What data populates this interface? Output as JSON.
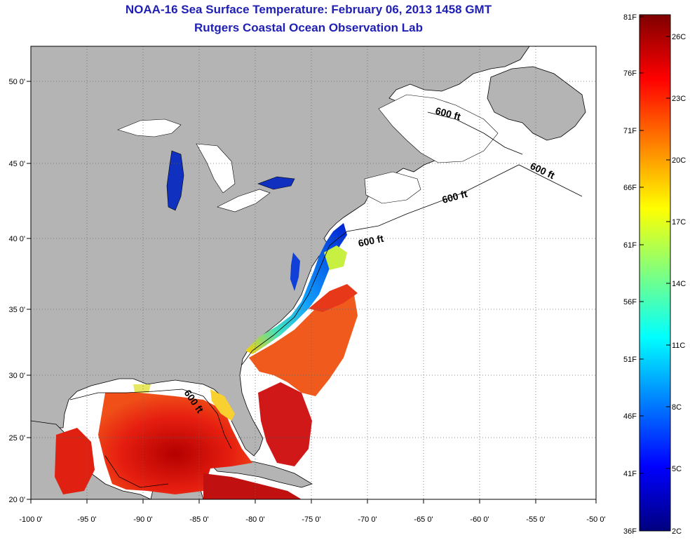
{
  "title": "NOAA-16 Sea Surface Temperature:  February 06, 2013 1458 GMT",
  "subtitle": "Rutgers Coastal Ocean Observation Lab",
  "axes": {
    "lon_ticks": [
      "-100 0'",
      "-95 0'",
      "-90 0'",
      "-85 0'",
      "-80 0'",
      "-75 0'",
      "-70 0'",
      "-65 0'",
      "-60 0'",
      "-55 0'",
      "-50 0'"
    ],
    "lat_ticks": [
      "50 0'",
      "45 0'",
      "40 0'",
      "35 0'",
      "30 0'",
      "25 0'",
      "20 0'"
    ]
  },
  "contour_labels": [
    "600 ft",
    "600 ft",
    "600 ft",
    "600 ft",
    "600 ft"
  ],
  "colorbar": {
    "f_labels": [
      "81F",
      "76F",
      "71F",
      "66F",
      "61F",
      "56F",
      "51F",
      "46F",
      "41F",
      "36F"
    ],
    "c_labels": [
      "26C",
      "23C",
      "20C",
      "17C",
      "14C",
      "11C",
      "8C",
      "5C",
      "2C"
    ]
  },
  "colors": {
    "land": "#b4b4b4",
    "ocean": "#ffffff",
    "title": "#1f1fb4"
  }
}
